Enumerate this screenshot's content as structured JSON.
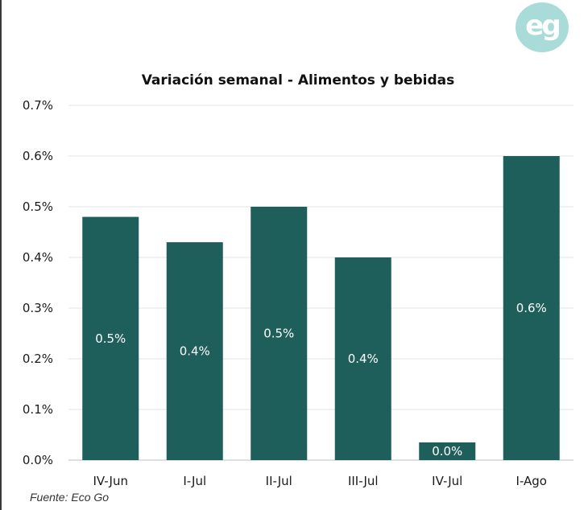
{
  "logo": {
    "text": "eg",
    "color": "#a9dcd8"
  },
  "chart_data": {
    "type": "bar",
    "title": "Variación semanal - Alimentos y bebidas",
    "categories": [
      "IV-Jun",
      "I-Jul",
      "II-Jul",
      "III-Jul",
      "IV-Jul",
      "I-Ago"
    ],
    "values": [
      0.48,
      0.43,
      0.5,
      0.4,
      0.035,
      0.6
    ],
    "data_labels": [
      "0.5%",
      "0.4%",
      "0.5%",
      "0.4%",
      "0.0%",
      "0.6%"
    ],
    "y_ticks": [
      "0.0%",
      "0.1%",
      "0.2%",
      "0.3%",
      "0.4%",
      "0.5%",
      "0.6%",
      "0.7%"
    ],
    "ylim": [
      0,
      0.7
    ],
    "xlabel": "",
    "ylabel": "",
    "grid": true,
    "legend": "none",
    "bar_color": "#1e5f5c"
  },
  "source": "Fuente: Eco Go"
}
